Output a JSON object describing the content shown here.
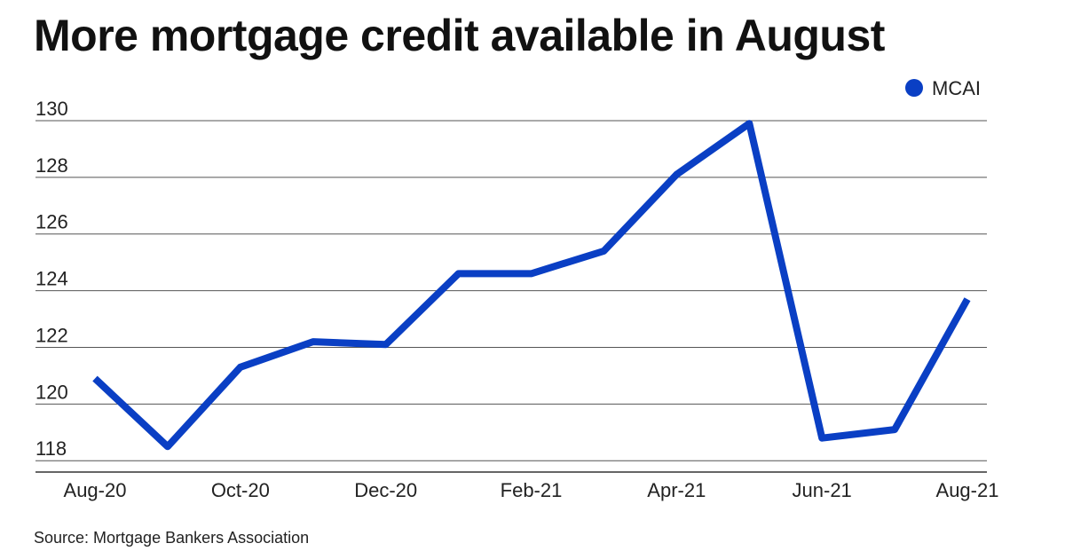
{
  "header": {
    "title": "More mortgage credit available in August"
  },
  "footer": {
    "source": "Source: Mortgage Bankers Association"
  },
  "chart_data": {
    "type": "line",
    "title": "More mortgage credit available in August",
    "xlabel": "",
    "ylabel": "",
    "x": [
      "Aug-20",
      "Sep-20",
      "Oct-20",
      "Nov-20",
      "Dec-20",
      "Jan-21",
      "Feb-21",
      "Mar-21",
      "Apr-21",
      "May-21",
      "Jun-21",
      "Jul-21",
      "Aug-21"
    ],
    "x_tick_labels": [
      "Aug-20",
      "Oct-20",
      "Dec-20",
      "Feb-21",
      "Apr-21",
      "Jun-21",
      "Aug-21"
    ],
    "y_ticks": [
      118,
      120,
      122,
      124,
      126,
      128,
      130
    ],
    "ylim": [
      117.6,
      130.5
    ],
    "grid": true,
    "legend_position": "top-right",
    "series": [
      {
        "name": "MCAI",
        "color": "#0a3fc4",
        "values": [
          120.9,
          118.5,
          121.3,
          122.2,
          122.1,
          124.6,
          124.6,
          125.4,
          128.1,
          129.9,
          118.8,
          119.1,
          123.7
        ]
      }
    ]
  }
}
